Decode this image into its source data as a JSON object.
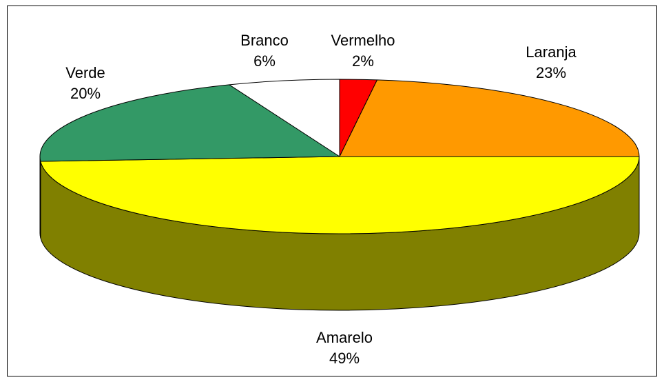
{
  "chart_data": {
    "type": "pie3d",
    "categories": [
      "Vermelho",
      "Laranja",
      "Amarelo",
      "Verde",
      "Branco"
    ],
    "values": [
      2,
      23,
      49,
      20,
      6
    ],
    "value_labels": [
      "2%",
      "23%",
      "49%",
      "20%",
      "6%"
    ],
    "colors": [
      "#ff0000",
      "#ff9900",
      "#ffff00",
      "#339966",
      "#ffffff"
    ]
  }
}
